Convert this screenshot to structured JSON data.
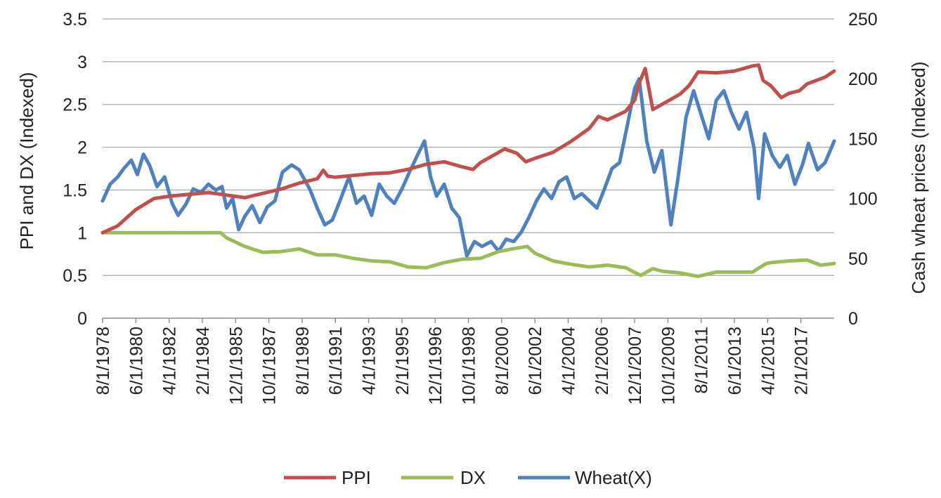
{
  "chart_data": {
    "type": "line",
    "title": "",
    "ylabel_left": "PPI and DX (Indexed)",
    "ylabel_right": "Cash wheat prices (Indexed)",
    "xlabel": "",
    "y_left": {
      "min": 0,
      "max": 3.5,
      "ticks": [
        0,
        0.5,
        1,
        1.5,
        2,
        2.5,
        3,
        3.5
      ],
      "tick_labels": [
        "0",
        "0.5",
        "1",
        "1.5",
        "2",
        "2.5",
        "3",
        "3.5"
      ]
    },
    "y_right": {
      "min": 0,
      "max": 250,
      "ticks": [
        0,
        50,
        100,
        150,
        200,
        250
      ],
      "tick_labels": [
        "0",
        "50",
        "100",
        "150",
        "200",
        "250"
      ]
    },
    "x_range": [
      "1978-08",
      "2018-12"
    ],
    "x_tick_labels": [
      "8/1/1978",
      "6/1/1980",
      "4/1/1982",
      "2/1/1984",
      "12/1/1985",
      "10/1/1987",
      "8/1/1989",
      "6/1/1991",
      "4/1/1993",
      "2/1/1995",
      "12/1/1996",
      "10/1/1998",
      "8/1/2000",
      "6/1/2002",
      "4/1/2004",
      "2/1/2006",
      "12/1/2007",
      "10/1/2009",
      "8/1/2011",
      "6/1/2013",
      "4/1/2015",
      "2/1/2017"
    ],
    "grid": true,
    "legend_position": "bottom",
    "series": [
      {
        "name": "PPI",
        "axis": "left",
        "color": "#c0504d",
        "points": [
          [
            "1978-08",
            1.0
          ],
          [
            "1979-06",
            1.08
          ],
          [
            "1980-06",
            1.27
          ],
          [
            "1981-06",
            1.4
          ],
          [
            "1982-06",
            1.43
          ],
          [
            "1984-06",
            1.47
          ],
          [
            "1985-06",
            1.44
          ],
          [
            "1986-06",
            1.41
          ],
          [
            "1987-06",
            1.46
          ],
          [
            "1988-06",
            1.51
          ],
          [
            "1989-06",
            1.58
          ],
          [
            "1990-06",
            1.63
          ],
          [
            "1990-10",
            1.73
          ],
          [
            "1991-01",
            1.66
          ],
          [
            "1991-06",
            1.65
          ],
          [
            "1992-06",
            1.67
          ],
          [
            "1993-06",
            1.69
          ],
          [
            "1994-06",
            1.7
          ],
          [
            "1995-06",
            1.74
          ],
          [
            "1996-06",
            1.8
          ],
          [
            "1997-06",
            1.83
          ],
          [
            "1998-06",
            1.77
          ],
          [
            "1999-01",
            1.74
          ],
          [
            "1999-06",
            1.82
          ],
          [
            "2000-06",
            1.94
          ],
          [
            "2000-10",
            1.98
          ],
          [
            "2001-06",
            1.93
          ],
          [
            "2001-12",
            1.83
          ],
          [
            "2002-06",
            1.87
          ],
          [
            "2003-06",
            1.94
          ],
          [
            "2004-06",
            2.07
          ],
          [
            "2005-06",
            2.22
          ],
          [
            "2005-12",
            2.36
          ],
          [
            "2006-06",
            2.32
          ],
          [
            "2007-06",
            2.42
          ],
          [
            "2007-12",
            2.55
          ],
          [
            "2008-03",
            2.75
          ],
          [
            "2008-07",
            2.92
          ],
          [
            "2008-12",
            2.44
          ],
          [
            "2009-06",
            2.5
          ],
          [
            "2010-06",
            2.62
          ],
          [
            "2010-12",
            2.72
          ],
          [
            "2011-06",
            2.88
          ],
          [
            "2012-06",
            2.87
          ],
          [
            "2013-06",
            2.89
          ],
          [
            "2014-06",
            2.95
          ],
          [
            "2014-10",
            2.96
          ],
          [
            "2015-01",
            2.78
          ],
          [
            "2015-06",
            2.72
          ],
          [
            "2016-01",
            2.58
          ],
          [
            "2016-06",
            2.63
          ],
          [
            "2017-01",
            2.66
          ],
          [
            "2017-06",
            2.74
          ],
          [
            "2018-06",
            2.82
          ],
          [
            "2018-12",
            2.89
          ]
        ]
      },
      {
        "name": "DX",
        "axis": "left",
        "color": "#9bbb59",
        "points": [
          [
            "1978-08",
            1.0
          ],
          [
            "1985-02",
            1.0
          ],
          [
            "1985-06",
            0.94
          ],
          [
            "1986-06",
            0.84
          ],
          [
            "1987-06",
            0.77
          ],
          [
            "1988-06",
            0.78
          ],
          [
            "1989-06",
            0.81
          ],
          [
            "1990-06",
            0.74
          ],
          [
            "1991-06",
            0.74
          ],
          [
            "1992-06",
            0.7
          ],
          [
            "1993-06",
            0.67
          ],
          [
            "1994-06",
            0.66
          ],
          [
            "1995-06",
            0.6
          ],
          [
            "1996-06",
            0.59
          ],
          [
            "1997-06",
            0.65
          ],
          [
            "1998-06",
            0.69
          ],
          [
            "1999-06",
            0.7
          ],
          [
            "2000-06",
            0.78
          ],
          [
            "2001-06",
            0.82
          ],
          [
            "2002-01",
            0.84
          ],
          [
            "2002-06",
            0.76
          ],
          [
            "2003-06",
            0.67
          ],
          [
            "2004-06",
            0.63
          ],
          [
            "2005-06",
            0.6
          ],
          [
            "2006-06",
            0.62
          ],
          [
            "2007-06",
            0.59
          ],
          [
            "2008-04",
            0.5
          ],
          [
            "2008-12",
            0.58
          ],
          [
            "2009-06",
            0.55
          ],
          [
            "2010-06",
            0.53
          ],
          [
            "2011-06",
            0.49
          ],
          [
            "2012-06",
            0.54
          ],
          [
            "2013-06",
            0.54
          ],
          [
            "2014-06",
            0.54
          ],
          [
            "2015-03",
            0.64
          ],
          [
            "2015-06",
            0.65
          ],
          [
            "2016-06",
            0.67
          ],
          [
            "2017-06",
            0.68
          ],
          [
            "2018-03",
            0.62
          ],
          [
            "2018-12",
            0.64
          ]
        ]
      },
      {
        "name": "Wheat(X)",
        "axis": "right",
        "color": "#4f81bd",
        "points": [
          [
            "1978-08",
            98
          ],
          [
            "1979-01",
            112
          ],
          [
            "1979-06",
            118
          ],
          [
            "1979-10",
            125
          ],
          [
            "1980-03",
            132
          ],
          [
            "1980-07",
            120
          ],
          [
            "1980-11",
            137
          ],
          [
            "1981-03",
            128
          ],
          [
            "1981-08",
            110
          ],
          [
            "1982-01",
            118
          ],
          [
            "1982-06",
            96
          ],
          [
            "1982-10",
            86
          ],
          [
            "1983-03",
            95
          ],
          [
            "1983-08",
            108
          ],
          [
            "1984-01",
            105
          ],
          [
            "1984-06",
            112
          ],
          [
            "1984-11",
            107
          ],
          [
            "1985-03",
            110
          ],
          [
            "1985-06",
            92
          ],
          [
            "1985-10",
            100
          ],
          [
            "1986-02",
            74
          ],
          [
            "1986-06",
            85
          ],
          [
            "1986-11",
            94
          ],
          [
            "1987-04",
            80
          ],
          [
            "1987-09",
            93
          ],
          [
            "1988-02",
            98
          ],
          [
            "1988-07",
            122
          ],
          [
            "1989-01",
            128
          ],
          [
            "1989-06",
            124
          ],
          [
            "1990-01",
            108
          ],
          [
            "1990-06",
            92
          ],
          [
            "1990-11",
            78
          ],
          [
            "1991-04",
            82
          ],
          [
            "1991-09",
            98
          ],
          [
            "1992-03",
            118
          ],
          [
            "1992-08",
            96
          ],
          [
            "1993-01",
            102
          ],
          [
            "1993-06",
            86
          ],
          [
            "1993-11",
            112
          ],
          [
            "1994-04",
            102
          ],
          [
            "1994-09",
            96
          ],
          [
            "1995-02",
            108
          ],
          [
            "1995-07",
            122
          ],
          [
            "1996-01",
            138
          ],
          [
            "1996-05",
            148
          ],
          [
            "1996-09",
            118
          ],
          [
            "1997-01",
            102
          ],
          [
            "1997-06",
            112
          ],
          [
            "1997-11",
            92
          ],
          [
            "1998-04",
            84
          ],
          [
            "1998-09",
            52
          ],
          [
            "1999-02",
            64
          ],
          [
            "1999-07",
            60
          ],
          [
            "2000-01",
            64
          ],
          [
            "2000-06",
            56
          ],
          [
            "2000-11",
            66
          ],
          [
            "2001-04",
            64
          ],
          [
            "2001-09",
            72
          ],
          [
            "2002-02",
            84
          ],
          [
            "2002-07",
            98
          ],
          [
            "2002-12",
            108
          ],
          [
            "2003-05",
            100
          ],
          [
            "2003-10",
            114
          ],
          [
            "2004-03",
            118
          ],
          [
            "2004-08",
            100
          ],
          [
            "2005-01",
            104
          ],
          [
            "2005-06",
            98
          ],
          [
            "2005-11",
            92
          ],
          [
            "2006-04",
            108
          ],
          [
            "2006-09",
            125
          ],
          [
            "2007-02",
            130
          ],
          [
            "2007-07",
            160
          ],
          [
            "2007-12",
            192
          ],
          [
            "2008-03",
            200
          ],
          [
            "2008-08",
            148
          ],
          [
            "2009-01",
            122
          ],
          [
            "2009-06",
            140
          ],
          [
            "2009-12",
            78
          ],
          [
            "2010-05",
            120
          ],
          [
            "2010-10",
            168
          ],
          [
            "2011-03",
            190
          ],
          [
            "2011-08",
            170
          ],
          [
            "2012-01",
            150
          ],
          [
            "2012-06",
            182
          ],
          [
            "2012-11",
            190
          ],
          [
            "2013-04",
            172
          ],
          [
            "2013-09",
            158
          ],
          [
            "2014-02",
            172
          ],
          [
            "2014-07",
            142
          ],
          [
            "2014-10",
            100
          ],
          [
            "2015-02",
            154
          ],
          [
            "2015-07",
            136
          ],
          [
            "2015-12",
            126
          ],
          [
            "2016-05",
            136
          ],
          [
            "2016-10",
            112
          ],
          [
            "2017-03",
            128
          ],
          [
            "2017-07",
            146
          ],
          [
            "2018-01",
            124
          ],
          [
            "2018-06",
            130
          ],
          [
            "2018-12",
            148
          ]
        ]
      }
    ]
  }
}
